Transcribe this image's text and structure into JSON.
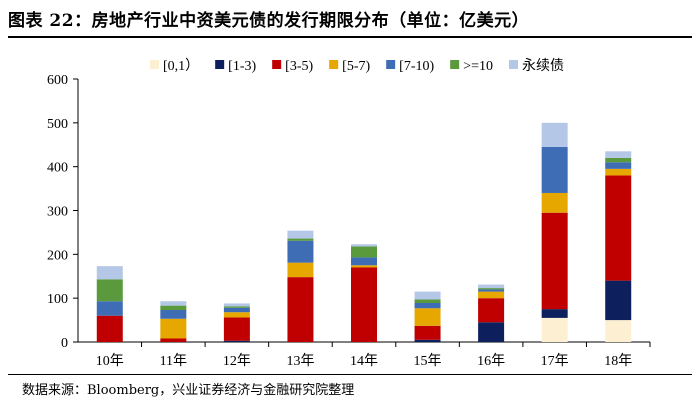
{
  "figure": {
    "title": "图表 22：房地产行业中资美元债的发行期限分布（单位：亿美元）",
    "source": "数据来源：Bloomberg，兴业证券经济与金融研究院整理"
  },
  "chart_data": {
    "type": "bar",
    "stacked": true,
    "title": "房地产行业中资美元债的发行期限分布（单位：亿美元）",
    "xlabel": "",
    "ylabel": "",
    "ylim": [
      0,
      600
    ],
    "yticks": [
      0,
      100,
      200,
      300,
      400,
      500,
      600
    ],
    "grid": false,
    "legend_position": "top",
    "categories": [
      "10年",
      "11年",
      "12年",
      "13年",
      "14年",
      "15年",
      "16年",
      "17年",
      "18年"
    ],
    "series": [
      {
        "name": "[0,1）",
        "color": "#fdf0d2",
        "values": [
          0,
          0,
          0,
          0,
          0,
          0,
          0,
          55,
          50
        ]
      },
      {
        "name": "[1-3)",
        "color": "#0d1f5c",
        "values": [
          0,
          0,
          3,
          0,
          0,
          5,
          45,
          20,
          90
        ]
      },
      {
        "name": "[3-5)",
        "color": "#c00000",
        "values": [
          60,
          8,
          53,
          148,
          170,
          32,
          55,
          220,
          240
        ]
      },
      {
        "name": "[5-7)",
        "color": "#e6a800",
        "values": [
          0,
          45,
          12,
          33,
          5,
          40,
          15,
          45,
          15
        ]
      },
      {
        "name": "[7-10)",
        "color": "#3f6db5",
        "values": [
          33,
          20,
          10,
          50,
          18,
          12,
          5,
          105,
          15
        ]
      },
      {
        "name": ">=10",
        "color": "#5a9a3c",
        "values": [
          50,
          10,
          3,
          5,
          25,
          8,
          3,
          0,
          10
        ]
      },
      {
        "name": "永续债",
        "color": "#b4c7e7",
        "values": [
          30,
          10,
          7,
          18,
          5,
          18,
          8,
          55,
          15
        ]
      }
    ]
  }
}
